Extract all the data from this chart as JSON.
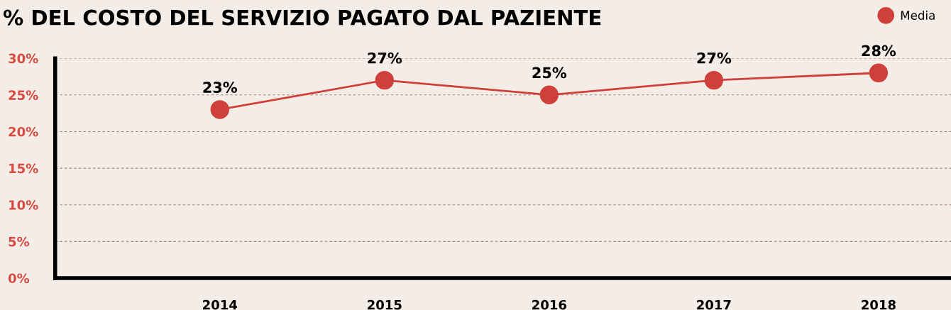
{
  "chart_data": {
    "type": "line",
    "title": "% DEL COSTO DEL SERVIZIO PAGATO DAL PAZIENTE",
    "categories": [
      "2014",
      "2015",
      "2016",
      "2017",
      "2018"
    ],
    "series": [
      {
        "name": "Media",
        "color": "#d0403a",
        "values": [
          23,
          27,
          25,
          27,
          28
        ],
        "value_labels": [
          "23%",
          "27%",
          "25%",
          "27%",
          "28%"
        ]
      }
    ],
    "ylim": [
      0,
      30
    ],
    "yticks": [
      {
        "value": 0,
        "label": "0%"
      },
      {
        "value": 5,
        "label": "5%"
      },
      {
        "value": 10,
        "label": "10%"
      },
      {
        "value": 15,
        "label": "15%"
      },
      {
        "value": 20,
        "label": "20%"
      },
      {
        "value": 25,
        "label": "25%"
      },
      {
        "value": 30,
        "label": "30%"
      }
    ],
    "grid": "y",
    "legend": "top right",
    "marker": "circle",
    "line_style": "solid"
  }
}
